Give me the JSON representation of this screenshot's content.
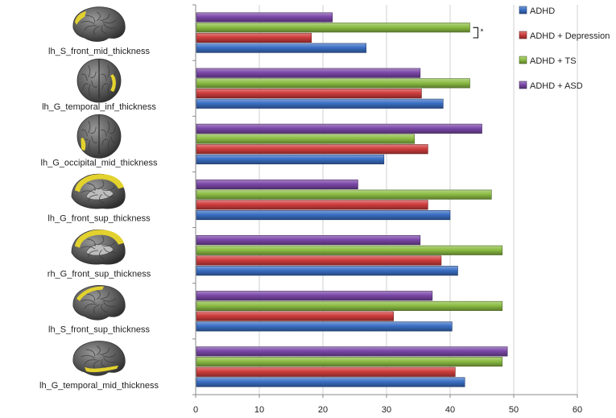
{
  "chart_data": {
    "type": "bar",
    "orientation": "horizontal",
    "title": "",
    "xlabel": "",
    "ylabel": "",
    "xlim": [
      0,
      60
    ],
    "xticks": [
      0,
      10,
      20,
      30,
      40,
      50,
      60
    ],
    "grid": true,
    "legend_position": "top-right",
    "categories": [
      "lh_S_front_mid_thickness",
      "lh_G_temporal_inf_thickness",
      "lh_G_occipital_mid_thickness",
      "lh_G_front_sup_thickness",
      "rh_G_front_sup_thickness",
      "lh_S_front_sup_thickness",
      "lh_G_temporal_mid_thickness"
    ],
    "series": [
      {
        "name": "ADHD",
        "color": "#3a6fc4",
        "values": [
          26.8,
          38.9,
          29.6,
          40.0,
          41.2,
          40.3,
          42.3
        ]
      },
      {
        "name": "ADHD + Depression",
        "color": "#cf3d3d",
        "values": [
          18.2,
          35.5,
          36.5,
          36.5,
          38.6,
          31.1,
          40.8
        ]
      },
      {
        "name": "ADHD + TS",
        "color": "#8cbd44",
        "values": [
          43.1,
          43.1,
          34.4,
          46.5,
          48.2,
          48.2,
          48.2
        ]
      },
      {
        "name": "ADHD + ASD",
        "color": "#7b48a8",
        "values": [
          21.5,
          35.3,
          45.0,
          25.5,
          35.3,
          37.2,
          49.0
        ]
      }
    ],
    "annotations": [
      {
        "category": "lh_S_front_mid_thickness",
        "between_series": [
          "ADHD + TS",
          "ADHD + Depression"
        ],
        "text": "*"
      }
    ]
  },
  "brain_icons": [
    "brain-lateral-left-icon",
    "brain-posterior-icon",
    "brain-posterior-icon",
    "brain-medial-icon",
    "brain-medial-icon",
    "brain-lateral-left-icon",
    "brain-lateral-left-icon"
  ],
  "colors": {
    "highlight": "#e3d22e",
    "cortex": "#5a5a5a",
    "grid": "#d0d0d0"
  }
}
